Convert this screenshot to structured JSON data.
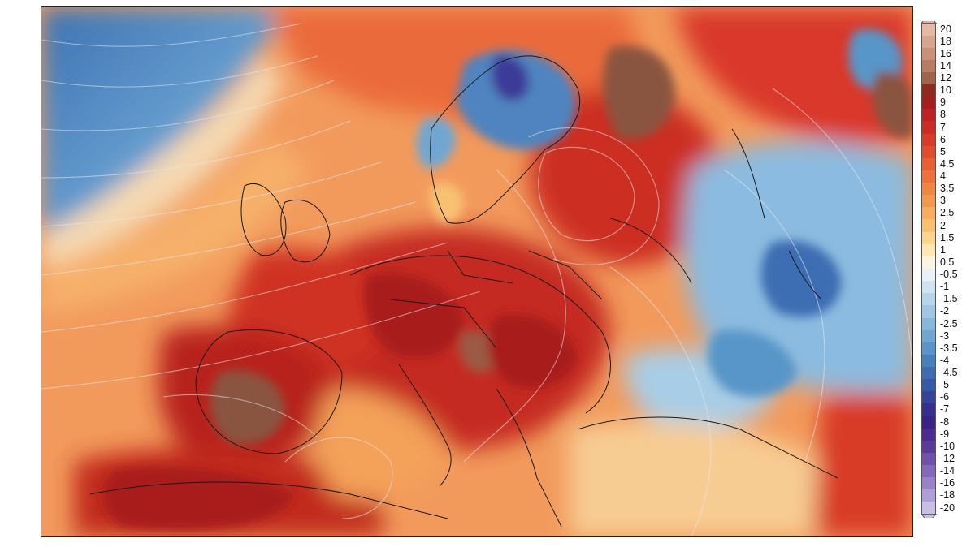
{
  "legend": {
    "ticks": [
      "20",
      "18",
      "16",
      "14",
      "12",
      "10",
      "9",
      "8",
      "7",
      "6",
      "5",
      "4.5",
      "4",
      "3.5",
      "3",
      "2.5",
      "2",
      "1.5",
      "1",
      "0.5",
      "-0.5",
      "-1",
      "-1.5",
      "-2",
      "-2.5",
      "-3",
      "-3.5",
      "-4",
      "-4.5",
      "-5",
      "-6",
      "-7",
      "-8",
      "-9",
      "-10",
      "-12",
      "-14",
      "-16",
      "-18",
      "-20"
    ],
    "colors": [
      "#e6b8a6",
      "#d9a48e",
      "#c99178",
      "#b77c62",
      "#a0644c",
      "#8e2a1e",
      "#a51e1e",
      "#bd2222",
      "#cc2d22",
      "#d83b28",
      "#e04d2d",
      "#e85f33",
      "#ec713a",
      "#f08643",
      "#f3994f",
      "#f6ad5f",
      "#f8c172",
      "#fad58b",
      "#fce8b0",
      "#fbf4de",
      "#e8f1f8",
      "#cfe3f1",
      "#b6d5ea",
      "#9ec7e3",
      "#86b8db",
      "#6fa7d2",
      "#5995c8",
      "#4680bd",
      "#3c6db2",
      "#3459a7",
      "#33449a",
      "#35308f",
      "#3b2287",
      "#4b2c91",
      "#5c3a9c",
      "#7052ab",
      "#8569b9",
      "#9a82c7",
      "#b09ed6",
      "#c9bfe6"
    ]
  },
  "regions": [
    {
      "name": "north-atlantic-anomaly",
      "kind": "cold",
      "color": "#5b95c9"
    },
    {
      "name": "scandinavia-anomaly",
      "kind": "cold",
      "color": "#4f84c0"
    },
    {
      "name": "iberia-anomaly",
      "kind": "very-warm",
      "color": "#8a5440"
    },
    {
      "name": "north-russia-anomaly",
      "kind": "very-warm",
      "color": "#8a5440"
    },
    {
      "name": "central-europe-anomaly",
      "kind": "warm",
      "color": "#c52a22"
    },
    {
      "name": "eastern-europe-anomaly",
      "kind": "cold",
      "color": "#7eb2da"
    }
  ]
}
